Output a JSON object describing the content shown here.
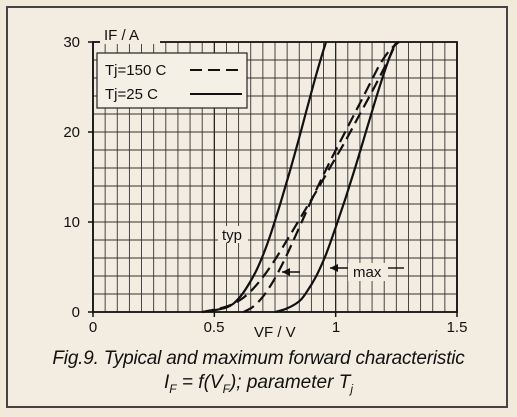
{
  "chart_data": {
    "type": "line",
    "xlabel": "VF / V",
    "ylabel": "IF / A",
    "xlim": [
      0,
      1.5
    ],
    "ylim": [
      0,
      30
    ],
    "x_ticks": [
      "0",
      "0.5",
      "1",
      "1.5"
    ],
    "y_ticks": [
      "0",
      "10",
      "20",
      "30"
    ],
    "grid": true,
    "legend": [
      {
        "label": "Tj=150 C",
        "style": "dashed"
      },
      {
        "label": "Tj=25 C",
        "style": "solid"
      }
    ],
    "annotations": [
      "typ",
      "max"
    ],
    "series": [
      {
        "name": "Tj=150 C",
        "style": "dashed",
        "group": "typ",
        "x": [
          0.45,
          0.55,
          0.62,
          0.68,
          0.74,
          0.8,
          0.86,
          0.92,
          0.98,
          1.04,
          1.1,
          1.16,
          1.22,
          1.25
        ],
        "y": [
          0,
          0.6,
          1.6,
          3.2,
          5.4,
          8.0,
          10.7,
          13.4,
          16.2,
          19.0,
          22.0,
          25.0,
          28.2,
          30
        ]
      },
      {
        "name": "Tj=25 C",
        "style": "solid",
        "group": "typ",
        "x": [
          0.45,
          0.55,
          0.6,
          0.64,
          0.68,
          0.72,
          0.76,
          0.8,
          0.84,
          0.88,
          0.92,
          0.96
        ],
        "y": [
          0,
          0.5,
          1.5,
          3.0,
          5.0,
          7.7,
          11.0,
          14.6,
          18.4,
          22.4,
          26.4,
          30
        ]
      },
      {
        "name": "Tj=150 C",
        "style": "dashed",
        "group": "max",
        "x": [
          0.62,
          0.66,
          0.7,
          0.74,
          0.78,
          0.82,
          0.86,
          0.9,
          0.94,
          0.98,
          1.02,
          1.06,
          1.1,
          1.14,
          1.18,
          1.22,
          1.26
        ],
        "y": [
          0,
          0.6,
          1.7,
          3.3,
          5.3,
          7.6,
          10.0,
          12.4,
          14.7,
          16.9,
          19.0,
          21.1,
          23.2,
          25.3,
          27.4,
          29.0,
          30
        ]
      },
      {
        "name": "Tj=25 C",
        "style": "solid",
        "group": "max",
        "x": [
          0.75,
          0.8,
          0.85,
          0.88,
          0.92,
          0.96,
          1.0,
          1.04,
          1.08,
          1.12,
          1.16,
          1.2,
          1.24,
          1.26
        ],
        "y": [
          0,
          0.4,
          1.2,
          2.2,
          4.0,
          6.4,
          9.4,
          12.6,
          16.0,
          19.6,
          23.2,
          26.6,
          29.5,
          30
        ]
      }
    ]
  },
  "caption": {
    "line1": "Fig.9.  Typical and maximum forward characteristic",
    "line2": "I_F = f(V_F); parameter T_j"
  }
}
